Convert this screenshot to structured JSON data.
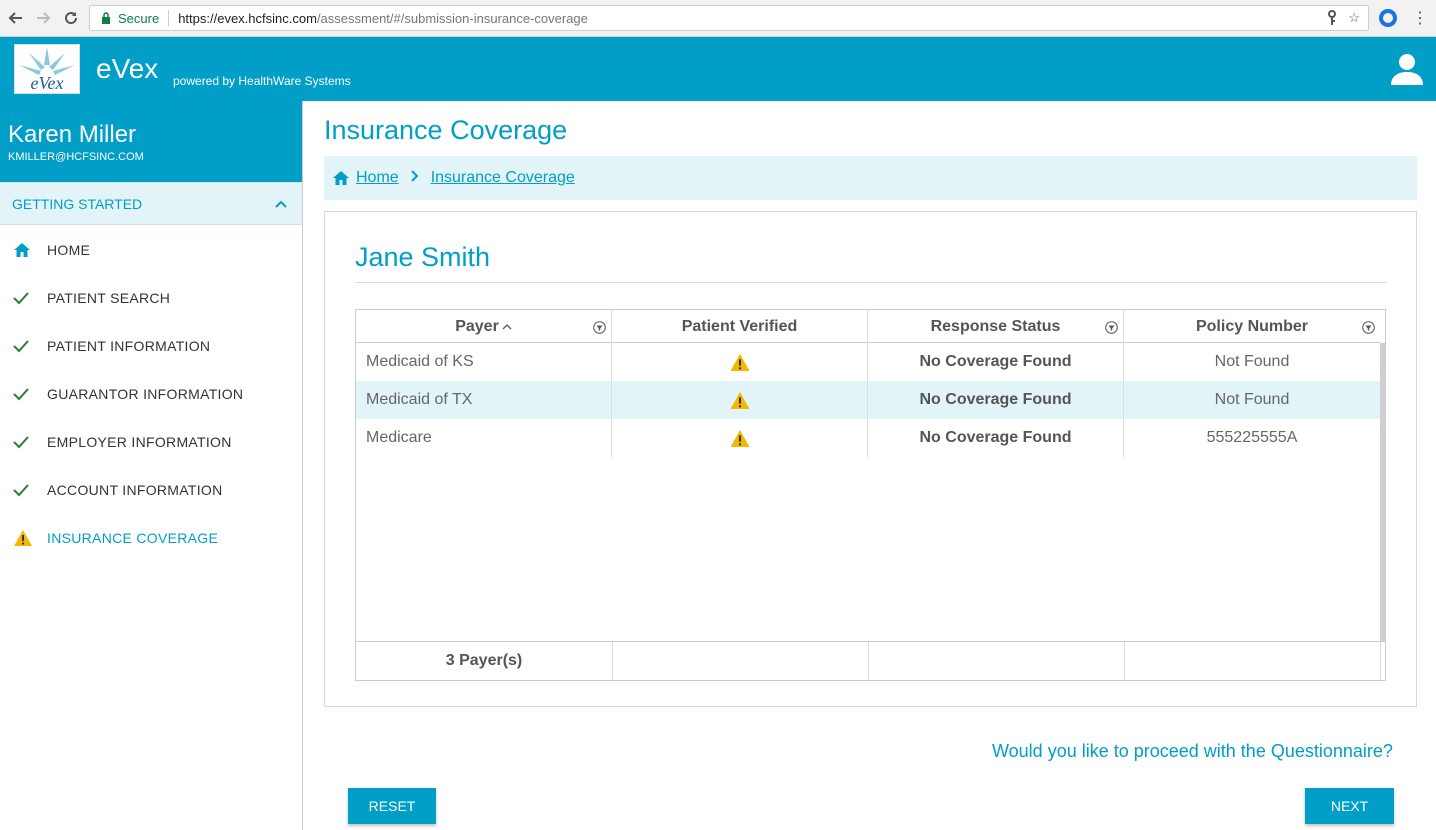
{
  "browser": {
    "secure_label": "Secure",
    "url_host": "https://evex.hcfsinc.com",
    "url_path": "/assessment/#/submission-insurance-coverage"
  },
  "header": {
    "app_name": "eVex",
    "powered_by": "powered by HealthWare Systems",
    "logo_text": "eVex"
  },
  "user": {
    "name": "Karen Miller",
    "email": "KMILLER@HCFSINC.COM"
  },
  "sidebar": {
    "section_label": "GETTING STARTED",
    "items": [
      {
        "label": "HOME",
        "icon": "home-icon"
      },
      {
        "label": "PATIENT SEARCH",
        "icon": "check-icon"
      },
      {
        "label": "PATIENT INFORMATION",
        "icon": "check-icon"
      },
      {
        "label": "GUARANTOR INFORMATION",
        "icon": "check-icon"
      },
      {
        "label": "EMPLOYER INFORMATION",
        "icon": "check-icon"
      },
      {
        "label": "ACCOUNT INFORMATION",
        "icon": "check-icon"
      },
      {
        "label": "INSURANCE COVERAGE",
        "icon": "warning-icon"
      }
    ]
  },
  "main": {
    "title": "Insurance Coverage",
    "breadcrumb": [
      "Home",
      "Insurance Coverage"
    ],
    "patient_name": "Jane Smith",
    "table": {
      "columns": [
        "Payer",
        "Patient Verified",
        "Response Status",
        "Policy Number"
      ],
      "rows": [
        {
          "payer": "Medicaid of KS",
          "status": "No Coverage Found",
          "policy": "Not Found"
        },
        {
          "payer": "Medicaid of TX",
          "status": "No Coverage Found",
          "policy": "Not Found"
        },
        {
          "payer": "Medicare",
          "status": "No Coverage Found",
          "policy": "555225555A"
        }
      ],
      "footer": "3 Payer(s)"
    },
    "proceed_text": "Would you like to proceed with the Questionnaire?",
    "reset_label": "RESET",
    "next_label": "NEXT"
  },
  "colors": {
    "accent": "#019ec8",
    "warning": "#f5b800",
    "check": "#2e7d32"
  }
}
